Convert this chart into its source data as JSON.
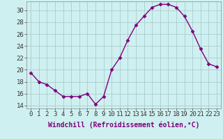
{
  "x": [
    0,
    1,
    2,
    3,
    4,
    5,
    6,
    7,
    8,
    9,
    10,
    11,
    12,
    13,
    14,
    15,
    16,
    17,
    18,
    19,
    20,
    21,
    22,
    23
  ],
  "y": [
    19.5,
    18.0,
    17.5,
    16.5,
    15.5,
    15.5,
    15.5,
    16.0,
    14.2,
    15.5,
    20.0,
    22.0,
    25.0,
    27.5,
    29.0,
    30.5,
    31.0,
    31.0,
    30.5,
    29.0,
    26.5,
    23.5,
    21.0,
    20.5
  ],
  "line_color": "#800080",
  "marker": "D",
  "marker_size": 2.5,
  "bg_color": "#cff0f0",
  "grid_color": "#aacccc",
  "xlabel": "Windchill (Refroidissement éolien,°C)",
  "yticks": [
    14,
    16,
    18,
    20,
    22,
    24,
    26,
    28,
    30
  ],
  "xticks": [
    0,
    1,
    2,
    3,
    4,
    5,
    6,
    7,
    8,
    9,
    10,
    11,
    12,
    13,
    14,
    15,
    16,
    17,
    18,
    19,
    20,
    21,
    22,
    23
  ],
  "xlabel_fontsize": 7,
  "tick_fontsize": 6.5,
  "line_width": 1.0
}
